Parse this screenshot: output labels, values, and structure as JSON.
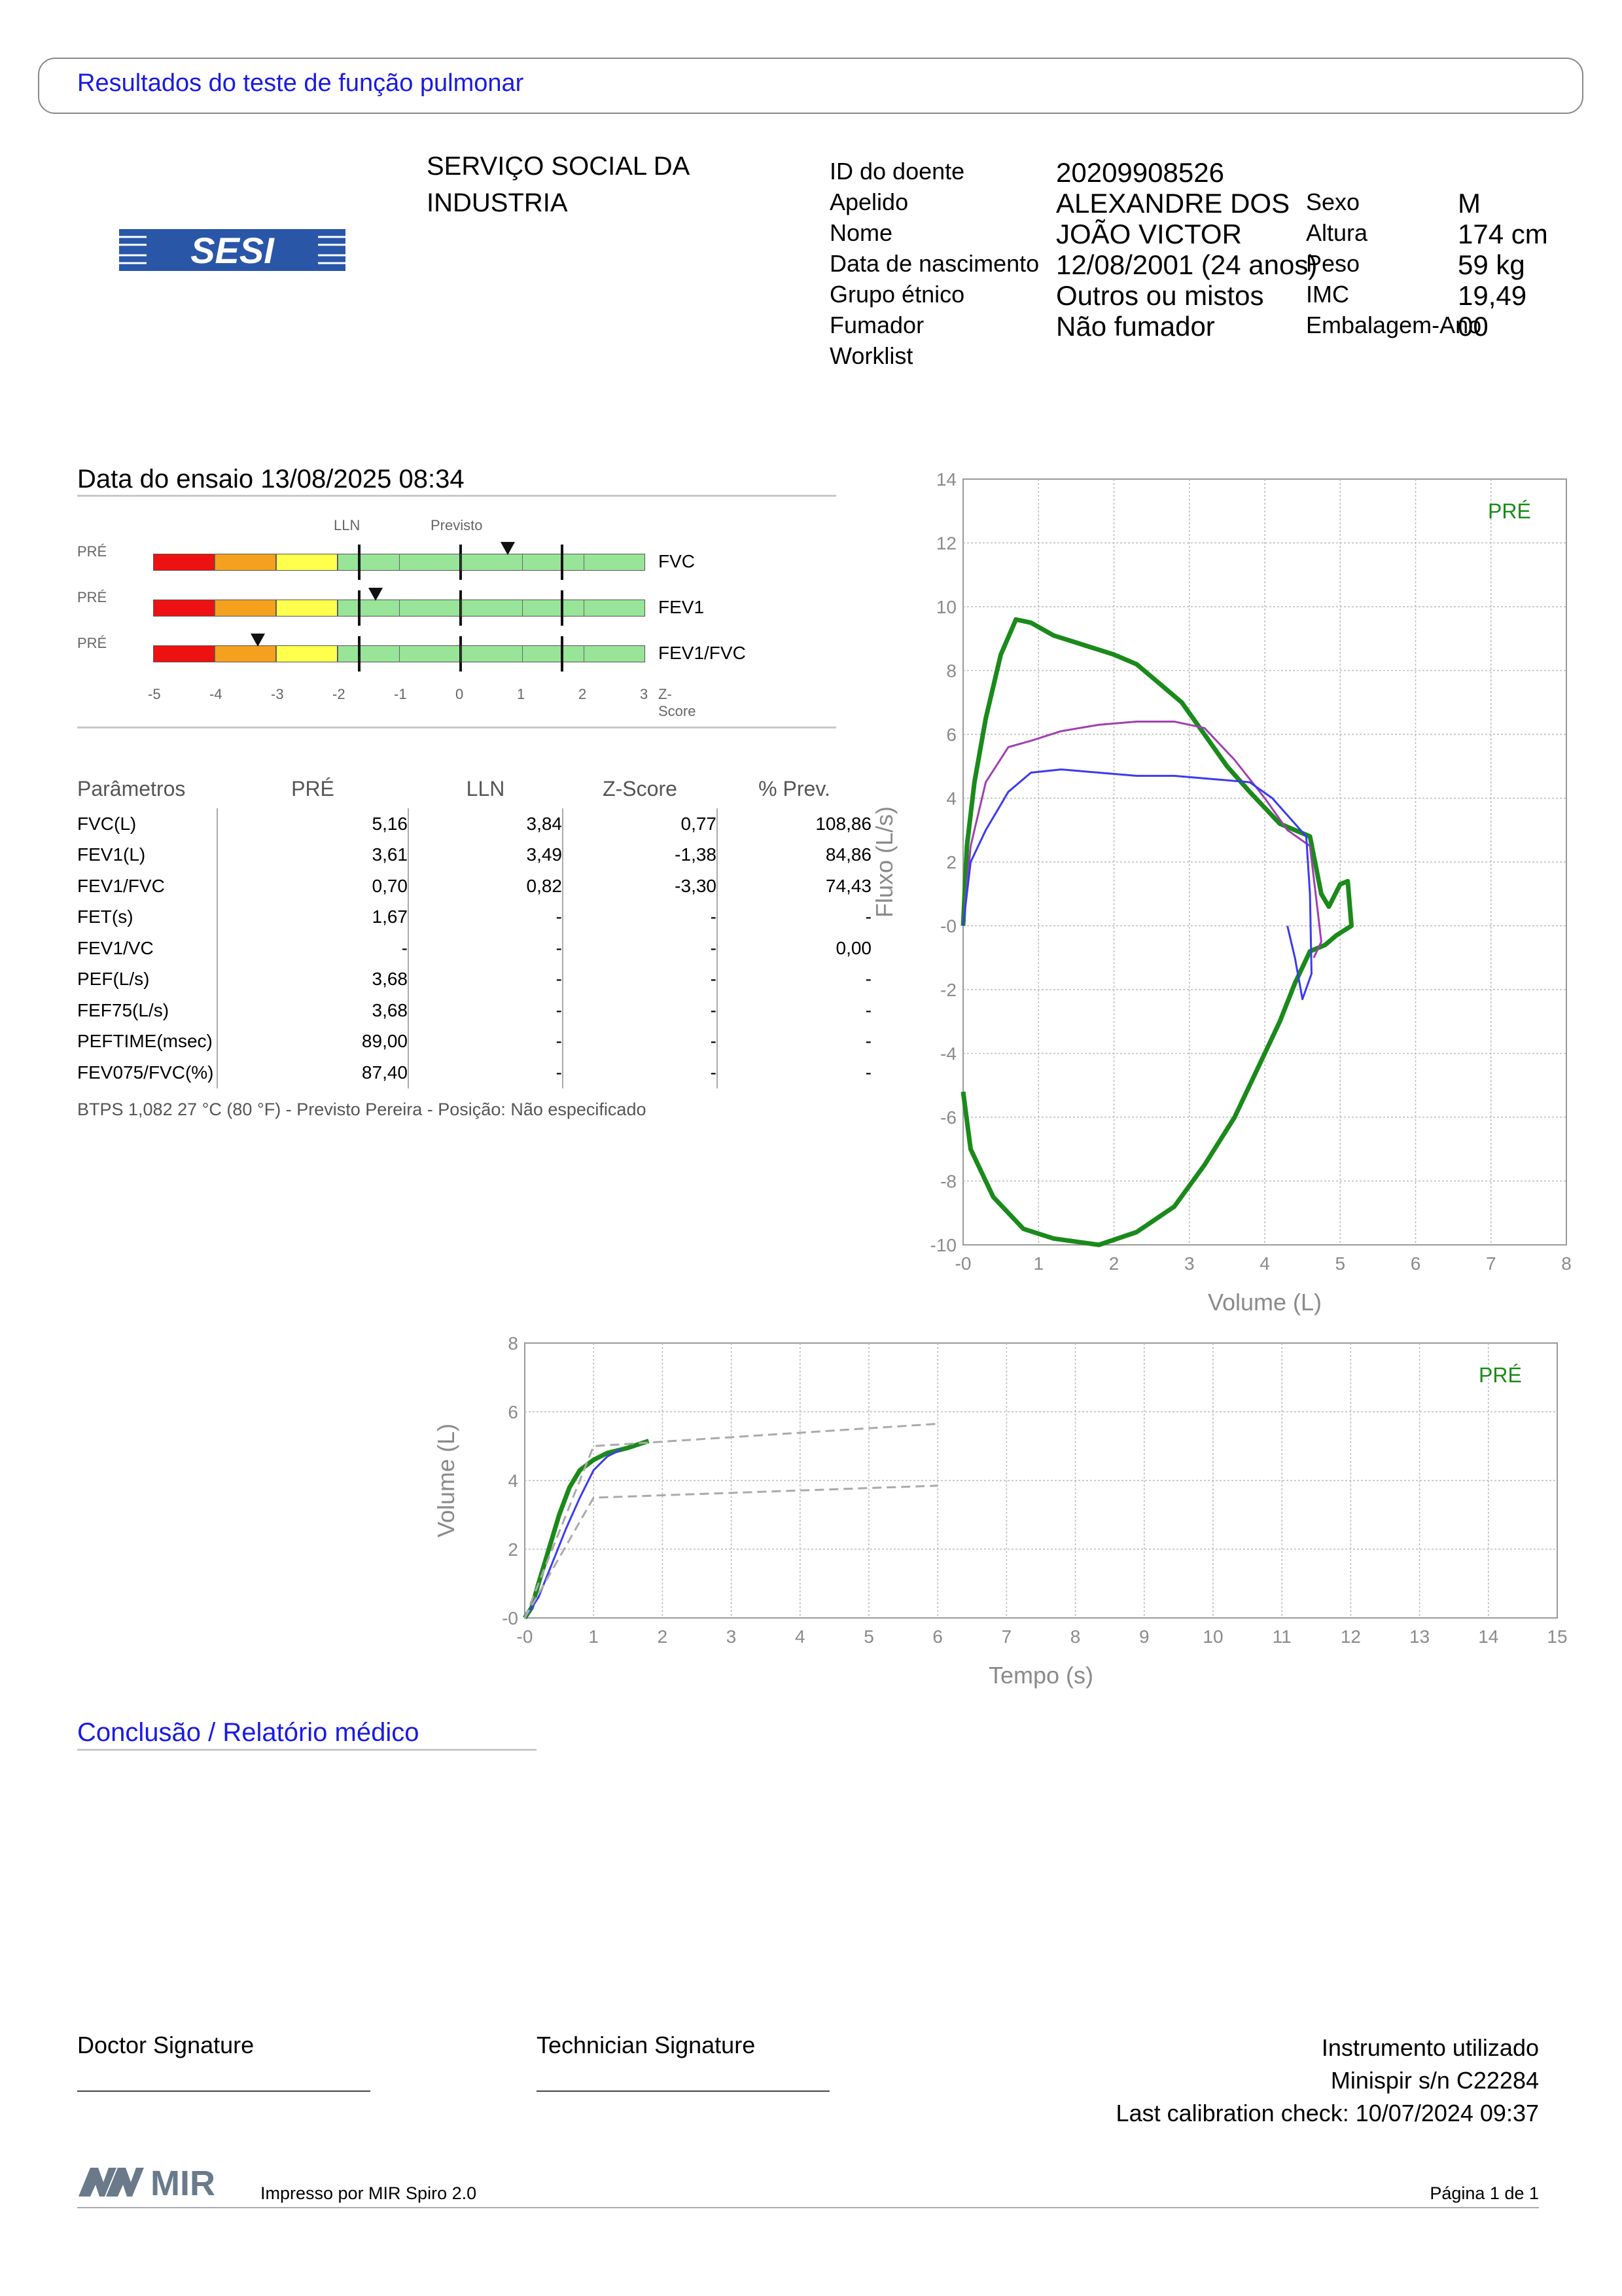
{
  "report_title": "Resultados do teste de função pulmonar",
  "logo_text": "SESI",
  "organization": "SERVIÇO SOCIAL DA\nINDUSTRIA",
  "patient": {
    "labels": [
      "ID do doente",
      "Apelido",
      "Nome",
      "Data de nascimento",
      "Grupo étnico",
      "Fumador",
      "Worklist"
    ],
    "values": [
      "20209908526",
      "ALEXANDRE DOS",
      "JOÃO VICTOR",
      "12/08/2001 (24 anos)",
      "Outros ou mistos",
      "Não fumador",
      ""
    ],
    "labels2": [
      "Sexo",
      "Altura",
      "Peso",
      "IMC",
      "Embalagem-Ano"
    ],
    "values2": [
      "M",
      "174 cm",
      "59 kg",
      "19,49",
      "00"
    ]
  },
  "test_date": "Data do ensaio 13/08/2025 08:34",
  "zscore_chart": {
    "header_lln": "LLN",
    "header_pred": "Previsto",
    "rows": [
      {
        "phase": "PRÉ",
        "name": "FVC",
        "z": 0.77
      },
      {
        "phase": "PRÉ",
        "name": "FEV1",
        "z": -1.38
      },
      {
        "phase": "PRÉ",
        "name": "FEV1/FVC",
        "z": -3.3
      }
    ],
    "ticks": [
      "-5",
      "-4",
      "-3",
      "-2",
      "-1",
      "0",
      "1",
      "2",
      "3"
    ],
    "axis_label": "Z-Score",
    "colors": {
      "red": "#ee1111",
      "orange": "#f5a01e",
      "yellow": "#ffff4d",
      "green": "#98e498"
    }
  },
  "params_table": {
    "headers": [
      "Parâmetros",
      "PRÉ",
      "LLN",
      "Z-Score",
      "% Prev."
    ],
    "rows": [
      [
        "FVC(L)",
        "5,16",
        "3,84",
        "0,77",
        "108,86"
      ],
      [
        "FEV1(L)",
        "3,61",
        "3,49",
        "-1,38",
        "84,86"
      ],
      [
        "FEV1/FVC",
        "0,70",
        "0,82",
        "-3,30",
        "74,43"
      ],
      [
        "FET(s)",
        "1,67",
        "-",
        "-",
        "-"
      ],
      [
        "FEV1/VC",
        "-",
        "-",
        "-",
        "0,00"
      ],
      [
        "PEF(L/s)",
        "3,68",
        "-",
        "-",
        "-"
      ],
      [
        "FEF75(L/s)",
        "3,68",
        "-",
        "-",
        "-"
      ],
      [
        "PEFTIME(msec)",
        "89,00",
        "-",
        "-",
        "-"
      ],
      [
        "FEV075/FVC(%)",
        "87,40",
        "-",
        "-",
        "-"
      ]
    ]
  },
  "footnote": "BTPS 1,082 27 °C (80 °F) - Previsto Pereira - Posição: Não especificado",
  "chart_data": [
    {
      "type": "line",
      "legend": "PRÉ",
      "xlabel": "Volume (L)",
      "ylabel": "Fluxo (L/s)",
      "xlim": [
        0,
        8
      ],
      "ylim": [
        -10,
        14
      ],
      "xticks": [
        "-0",
        "1",
        "2",
        "3",
        "4",
        "5",
        "6",
        "7",
        "8"
      ],
      "yticks": [
        "14",
        "12",
        "10",
        "8",
        "6",
        "4",
        "2",
        "-0",
        "-2",
        "-4",
        "-6",
        "-8",
        "-10"
      ],
      "grid": true,
      "series": [
        {
          "color": "#1a8a1a",
          "points": [
            [
              0,
              0
            ],
            [
              0.05,
              2.5
            ],
            [
              0.15,
              4.5
            ],
            [
              0.3,
              6.5
            ],
            [
              0.5,
              8.5
            ],
            [
              0.7,
              9.6
            ],
            [
              0.9,
              9.5
            ],
            [
              1.2,
              9.1
            ],
            [
              1.6,
              8.8
            ],
            [
              2.0,
              8.5
            ],
            [
              2.3,
              8.2
            ],
            [
              2.6,
              7.6
            ],
            [
              2.9,
              7.0
            ],
            [
              3.2,
              6.0
            ],
            [
              3.5,
              5.0
            ],
            [
              3.8,
              4.2
            ],
            [
              4.2,
              3.2
            ],
            [
              4.6,
              2.8
            ],
            [
              4.75,
              1.0
            ],
            [
              4.85,
              0.6
            ],
            [
              5.0,
              1.3
            ],
            [
              5.1,
              1.4
            ],
            [
              5.15,
              0
            ],
            [
              4.95,
              -0.3
            ],
            [
              4.8,
              -0.6
            ],
            [
              4.6,
              -0.8
            ],
            [
              4.4,
              -1.8
            ],
            [
              4.2,
              -3.0
            ],
            [
              4.0,
              -4.0
            ],
            [
              3.6,
              -6.0
            ],
            [
              3.2,
              -7.5
            ],
            [
              2.8,
              -8.8
            ],
            [
              2.3,
              -9.6
            ],
            [
              1.8,
              -10.0
            ],
            [
              1.2,
              -9.8
            ],
            [
              0.8,
              -9.5
            ],
            [
              0.4,
              -8.5
            ],
            [
              0.1,
              -7.0
            ],
            [
              0,
              -5.2
            ]
          ]
        },
        {
          "color": "#a040b0",
          "points": [
            [
              0,
              0
            ],
            [
              0.1,
              2.5
            ],
            [
              0.3,
              4.5
            ],
            [
              0.6,
              5.6
            ],
            [
              0.9,
              5.8
            ],
            [
              1.3,
              6.1
            ],
            [
              1.8,
              6.3
            ],
            [
              2.3,
              6.4
            ],
            [
              2.8,
              6.4
            ],
            [
              3.2,
              6.2
            ],
            [
              3.6,
              5.2
            ],
            [
              4.0,
              4.0
            ],
            [
              4.3,
              3.0
            ],
            [
              4.6,
              2.5
            ],
            [
              4.7,
              0.5
            ],
            [
              4.75,
              -0.5
            ],
            [
              4.65,
              -1.0
            ]
          ]
        },
        {
          "color": "#3b3bf0",
          "points": [
            [
              0,
              0
            ],
            [
              0.1,
              2.0
            ],
            [
              0.3,
              3.0
            ],
            [
              0.6,
              4.2
            ],
            [
              0.9,
              4.8
            ],
            [
              1.3,
              4.9
            ],
            [
              1.8,
              4.8
            ],
            [
              2.3,
              4.7
            ],
            [
              2.8,
              4.7
            ],
            [
              3.3,
              4.6
            ],
            [
              3.8,
              4.5
            ],
            [
              4.1,
              4.0
            ],
            [
              4.4,
              3.2
            ],
            [
              4.55,
              2.8
            ],
            [
              4.6,
              1.0
            ],
            [
              4.62,
              -1.5
            ],
            [
              4.5,
              -2.3
            ],
            [
              4.4,
              -1.0
            ],
            [
              4.3,
              0
            ]
          ]
        }
      ]
    },
    {
      "type": "line",
      "legend": "PRÉ",
      "xlabel": "Tempo (s)",
      "ylabel": "Volume (L)",
      "xlim": [
        0,
        15
      ],
      "ylim": [
        0,
        8
      ],
      "xticks": [
        "-0",
        "1",
        "2",
        "3",
        "4",
        "5",
        "6",
        "7",
        "8",
        "9",
        "10",
        "11",
        "12",
        "13",
        "14",
        "15"
      ],
      "yticks": [
        "8",
        "6",
        "4",
        "2",
        "-0"
      ],
      "grid": true,
      "series": [
        {
          "color": "#1a8a1a",
          "points": [
            [
              0,
              0
            ],
            [
              0.1,
              0.3
            ],
            [
              0.2,
              1.0
            ],
            [
              0.35,
              2.0
            ],
            [
              0.5,
              3.0
            ],
            [
              0.65,
              3.8
            ],
            [
              0.8,
              4.3
            ],
            [
              1.0,
              4.6
            ],
            [
              1.2,
              4.8
            ],
            [
              1.5,
              4.95
            ],
            [
              1.8,
              5.15
            ]
          ]
        },
        {
          "color": "#3b3bf0",
          "points": [
            [
              0,
              0
            ],
            [
              0.2,
              0.6
            ],
            [
              0.4,
              1.6
            ],
            [
              0.6,
              2.6
            ],
            [
              0.8,
              3.5
            ],
            [
              1.0,
              4.3
            ],
            [
              1.2,
              4.7
            ],
            [
              1.4,
              4.9
            ]
          ]
        },
        {
          "color": "#aaaaaa",
          "dashed": true,
          "points": [
            [
              0,
              0
            ],
            [
              1.0,
              5.0
            ],
            [
              6.0,
              5.65
            ]
          ]
        },
        {
          "color": "#aaaaaa",
          "dashed": true,
          "points": [
            [
              0,
              0
            ],
            [
              1.0,
              3.5
            ],
            [
              6.0,
              3.85
            ]
          ]
        }
      ]
    }
  ],
  "conclusion_title": "Conclusão / Relatório médico",
  "doctor_signature": "Doctor Signature",
  "technician_signature": "Technician Signature",
  "instrument": {
    "title": "Instrumento utilizado",
    "model": "Minispir s/n C22284",
    "calibration": "Last calibration check: 10/07/2024 09:37"
  },
  "footer": {
    "brand": "MIR",
    "printed_by": "Impresso por MIR Spiro 2.0",
    "page": "Página 1 de 1"
  }
}
